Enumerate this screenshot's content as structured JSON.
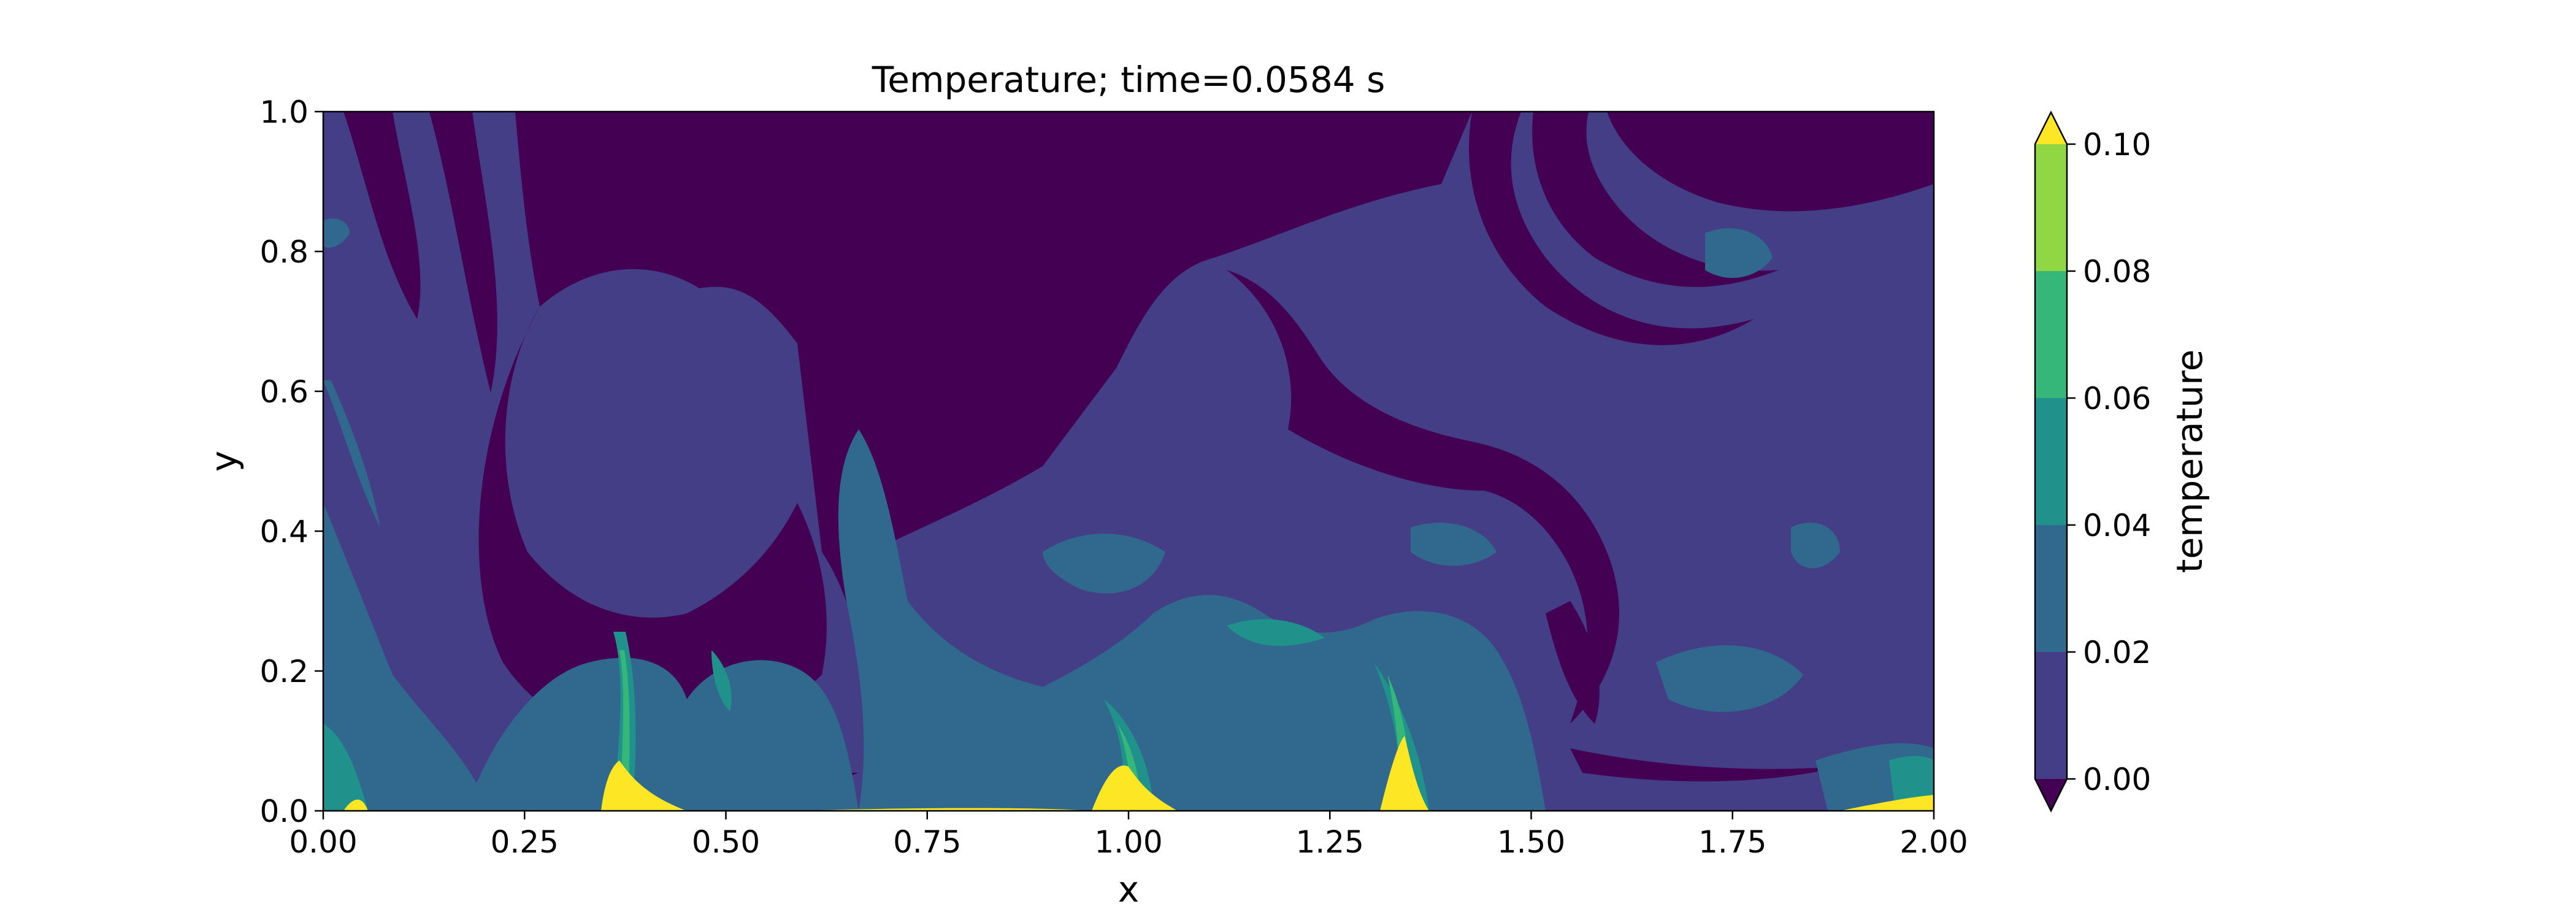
{
  "chart_data": {
    "type": "heatmap",
    "title": "Temperature; time=0.0584 s",
    "xlabel": "x",
    "ylabel": "y",
    "xlim": [
      0.0,
      2.0
    ],
    "ylim": [
      0.0,
      1.0
    ],
    "xticks": [
      "0.00",
      "0.25",
      "0.50",
      "0.75",
      "1.00",
      "1.25",
      "1.50",
      "1.75",
      "2.00"
    ],
    "yticks": [
      "0.0",
      "0.2",
      "0.4",
      "0.6",
      "0.8",
      "1.0"
    ],
    "grid": false,
    "colorbar": {
      "label": "temperature",
      "ticks": [
        "0.00",
        "0.02",
        "0.04",
        "0.06",
        "0.08",
        "0.10"
      ],
      "levels": [
        0.0,
        0.02,
        0.04,
        0.06,
        0.08,
        0.1
      ],
      "extend": "both",
      "colors": [
        "#440154",
        "#433e85",
        "#31688e",
        "#21918c",
        "#35b779",
        "#90d743",
        "#fde725"
      ]
    },
    "palette": {
      "below_min": "#440154",
      "band_0_002": "#433e85",
      "band_002_004": "#31688e",
      "band_004_006": "#21918c",
      "band_006_008": "#35b779",
      "band_008_010": "#90d743",
      "above_max": "#fde725"
    }
  }
}
